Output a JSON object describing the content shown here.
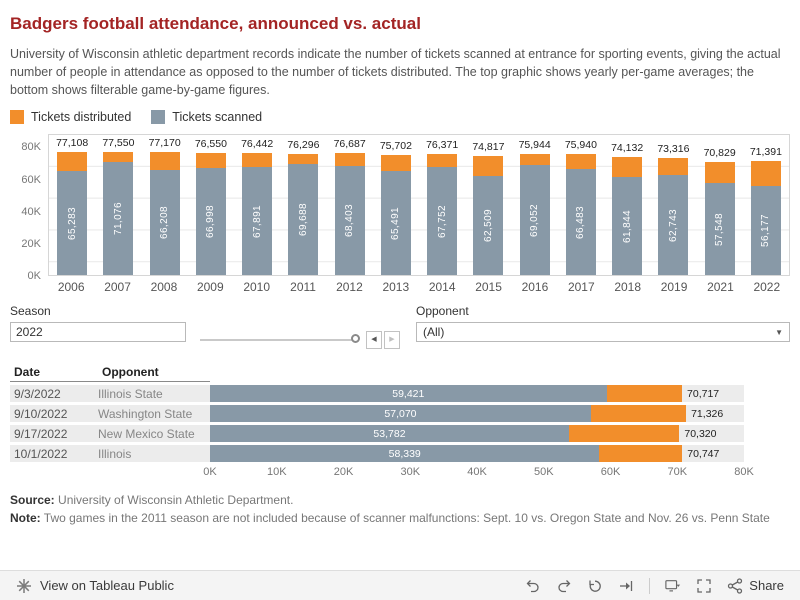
{
  "title": "Badgers football attendance, announced vs. actual",
  "description": "University of Wisconsin athletic department records indicate the number of tickets scanned at entrance for sporting events, giving the actual number of people in attendance as opposed to the number of tickets distributed. The top graphic shows yearly per-game averages; the bottom shows filterable game-by-game figures.",
  "colors": {
    "distributed": "#f28e2b",
    "scanned": "#8899a7",
    "title_accent": "#a32424"
  },
  "legend": [
    {
      "label": "Tickets distributed"
    },
    {
      "label": "Tickets scanned"
    }
  ],
  "filters": {
    "season": {
      "label": "Season",
      "value": "2022"
    },
    "opponent": {
      "label": "Opponent",
      "value": "(All)"
    }
  },
  "table": {
    "columns": [
      "Date",
      "Opponent"
    ]
  },
  "chart_data": [
    {
      "type": "bar",
      "title": "",
      "categories": [
        "2006",
        "2007",
        "2008",
        "2009",
        "2010",
        "2011",
        "2012",
        "2013",
        "2014",
        "2015",
        "2016",
        "2017",
        "2018",
        "2019",
        "2021",
        "2022"
      ],
      "series": [
        {
          "name": "Tickets distributed",
          "values": [
            77108,
            77550,
            77170,
            76550,
            76442,
            76296,
            76687,
            75702,
            76371,
            74817,
            75944,
            75940,
            74132,
            73316,
            70829,
            71391
          ]
        },
        {
          "name": "Tickets scanned",
          "values": [
            65283,
            71076,
            66208,
            66998,
            67891,
            69688,
            68403,
            65491,
            67752,
            62509,
            69052,
            66483,
            61844,
            62743,
            57548,
            56177
          ]
        }
      ],
      "ylim": [
        0,
        88000
      ],
      "ytick_values": [
        0,
        20000,
        40000,
        60000,
        80000
      ],
      "yticks": [
        "0K",
        "20K",
        "40K",
        "60K",
        "80K"
      ],
      "grid": true,
      "legend_position": "top"
    },
    {
      "type": "bar",
      "orientation": "horizontal",
      "title": "",
      "rows": [
        {
          "date": "9/3/2022",
          "opponent": "Illinois State",
          "scanned": 59421,
          "distributed": 70717
        },
        {
          "date": "9/10/2022",
          "opponent": "Washington State",
          "scanned": 57070,
          "distributed": 71326
        },
        {
          "date": "9/17/2022",
          "opponent": "New Mexico State",
          "scanned": 53782,
          "distributed": 70320
        },
        {
          "date": "10/1/2022",
          "opponent": "Illinois",
          "scanned": 58339,
          "distributed": 70747
        }
      ],
      "xlim": [
        0,
        80000
      ],
      "xtick_values": [
        0,
        10000,
        20000,
        30000,
        40000,
        50000,
        60000,
        70000,
        80000
      ],
      "xticks": [
        "0K",
        "10K",
        "20K",
        "30K",
        "40K",
        "50K",
        "60K",
        "70K",
        "80K"
      ]
    }
  ],
  "footer": {
    "source_label": "Source:",
    "source_text": " University of Wisconsin Athletic Department.",
    "note_label": "Note:",
    "note_text": " Two games in the 2011 season are not included because of scanner malfunctions: Sept. 10 vs. Oregon State and Nov. 26 vs. Penn State"
  },
  "toolbar": {
    "view_label": "View on Tableau Public",
    "share_label": "Share"
  }
}
